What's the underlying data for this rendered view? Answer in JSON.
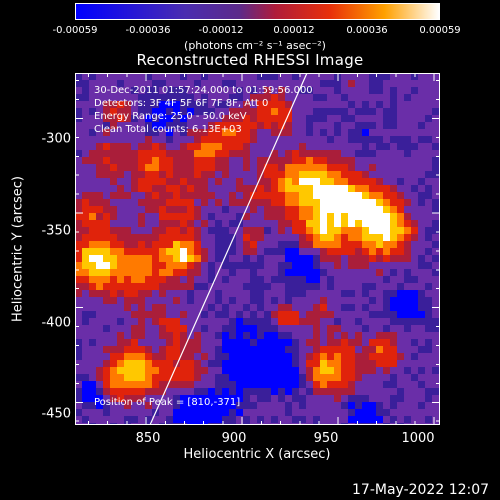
{
  "colorbar": {
    "ticks": [
      "-0.00059",
      "-0.00036",
      "-0.00012",
      "0.00012",
      "0.00036",
      "0.00059"
    ],
    "units": "(photons cm⁻² s⁻¹ asec⁻²)"
  },
  "plot": {
    "title": "Reconstructed RHESSI Image",
    "info": [
      "30-Dec-2011 01:57:24.000 to 01:59:56.000",
      "Detectors: 3F 4F 5F 6F 7F 8F, Att 0",
      "Energy Range: 25.0 - 50.0 keV",
      "Clean     Total counts: 6.13E+03"
    ],
    "peak_label": "Position of Peak = [810,-371]",
    "xlabel": "Heliocentric X (arcsec)",
    "ylabel": "Heliocentric Y (arcsec)",
    "xticks": [
      "850",
      "900",
      "950",
      "1000"
    ],
    "yticks": [
      "-300",
      "-350",
      "-400",
      "-450"
    ],
    "xlim": [
      813,
      1003
    ],
    "ylim": [
      -462,
      -276
    ]
  },
  "timestamp": "17-May-2022 12:07",
  "colormap": [
    "#0000ff",
    "#3a1f9a",
    "#6a2ea8",
    "#aa1e3a",
    "#e0230b",
    "#ff7a00",
    "#ffc800",
    "#ffffff"
  ]
}
